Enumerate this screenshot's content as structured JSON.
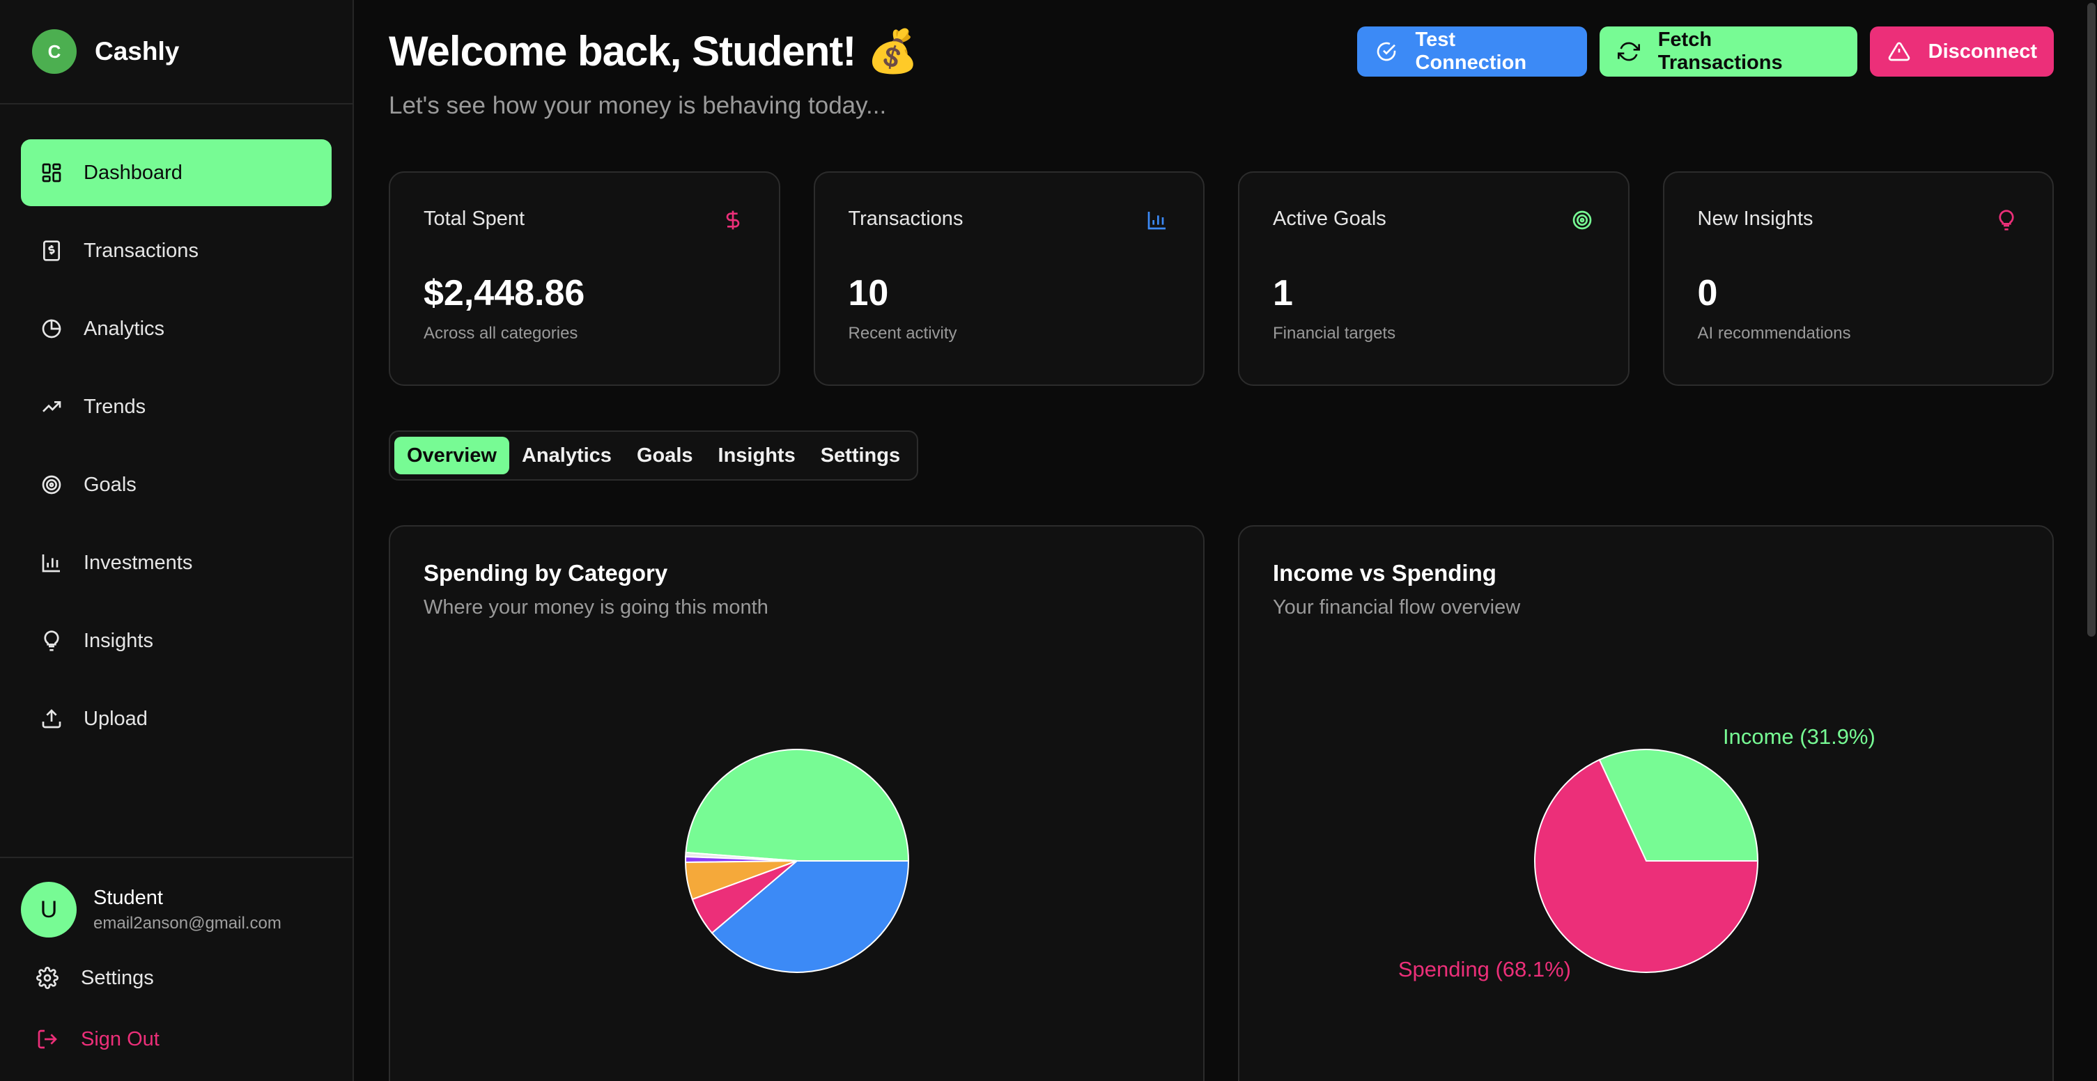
{
  "app": {
    "name": "Cashly",
    "logo_letter": "C"
  },
  "sidebar": {
    "items": [
      {
        "label": "Dashboard",
        "icon": "dashboard-grid-icon",
        "active": true
      },
      {
        "label": "Transactions",
        "icon": "receipt-dollar-icon"
      },
      {
        "label": "Analytics",
        "icon": "pie-chart-icon"
      },
      {
        "label": "Trends",
        "icon": "trending-up-icon"
      },
      {
        "label": "Goals",
        "icon": "target-icon"
      },
      {
        "label": "Investments",
        "icon": "bar-chart-icon"
      },
      {
        "label": "Insights",
        "icon": "lightbulb-icon"
      },
      {
        "label": "Upload",
        "icon": "upload-icon"
      }
    ]
  },
  "user": {
    "avatar_letter": "U",
    "name": "Student",
    "email": "email2anson@gmail.com"
  },
  "bottom_links": {
    "settings": "Settings",
    "sign_out": "Sign Out"
  },
  "header": {
    "greeting": "Welcome back, Student! 💰",
    "subtitle": "Let's see how your money is behaving today..."
  },
  "actions": {
    "test_connection": "Test Connection",
    "fetch_transactions": "Fetch Transactions",
    "disconnect": "Disconnect"
  },
  "stats": [
    {
      "label": "Total Spent",
      "value": "$2,448.86",
      "desc": "Across all categories",
      "icon": "dollar-icon",
      "color": "#ec2f79"
    },
    {
      "label": "Transactions",
      "value": "10",
      "desc": "Recent activity",
      "icon": "bar-chart-icon",
      "color": "#3c8af6"
    },
    {
      "label": "Active Goals",
      "value": "1",
      "desc": "Financial targets",
      "icon": "target-icon",
      "color": "#77fb94"
    },
    {
      "label": "New Insights",
      "value": "0",
      "desc": "AI recommendations",
      "icon": "lightbulb-icon",
      "color": "#ec2f79"
    }
  ],
  "tabs": [
    "Overview",
    "Analytics",
    "Goals",
    "Insights",
    "Settings"
  ],
  "active_tab": "Overview",
  "panels": {
    "spending": {
      "title": "Spending by Category",
      "subtitle": "Where your money is going this month"
    },
    "income": {
      "title": "Income vs Spending",
      "subtitle": "Your financial flow overview"
    }
  },
  "colors": {
    "accent_green": "#77fb94",
    "accent_blue": "#3c8af6",
    "accent_pink": "#ec2f79",
    "accent_orange": "#f5a93a",
    "accent_purple": "#8b3cf6",
    "background": "#0b0b0b",
    "card": "#111111"
  },
  "chart_data": [
    {
      "type": "pie",
      "slices": [
        {
          "value": 48.8,
          "color": "#77fb94"
        },
        {
          "value": 0.6,
          "color": "#e8e8e8"
        },
        {
          "value": 0.8,
          "color": "#8b3cf6"
        },
        {
          "value": 5.4,
          "color": "#f5a93a"
        },
        {
          "value": 5.6,
          "color": "#ec2f79"
        },
        {
          "value": 38.8,
          "color": "#3c8af6"
        }
      ]
    },
    {
      "type": "pie",
      "slices": [
        {
          "label": "Income (31.9%)",
          "value": 31.9,
          "color": "#77fb94"
        },
        {
          "label": "Spending (68.1%)",
          "value": 68.1,
          "color": "#ec2f79"
        }
      ]
    }
  ]
}
